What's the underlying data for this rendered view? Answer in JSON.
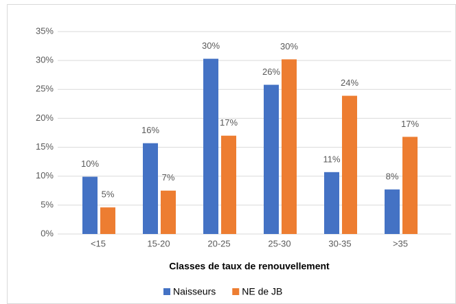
{
  "chart_data": {
    "type": "bar",
    "x_label": "Classes de taux de renouvellement",
    "categories": [
      "<15",
      "15-20",
      "20-25",
      "25-30",
      "30-35",
      ">35"
    ],
    "series": [
      {
        "name": "Naisseurs",
        "color": "#4472c4",
        "values": [
          9.9,
          15.7,
          30.3,
          25.8,
          10.7,
          7.7
        ],
        "value_labels": [
          "10%",
          "16%",
          "30%",
          "26%",
          "11%",
          "8%"
        ]
      },
      {
        "name": "NE de JB",
        "color": "#ed7d31",
        "values": [
          4.6,
          7.5,
          17.0,
          30.2,
          23.9,
          16.8
        ],
        "value_labels": [
          "5%",
          "7%",
          "17%",
          "30%",
          "24%",
          "17%"
        ]
      }
    ],
    "ylim": [
      0,
      35
    ],
    "yticks": [
      {
        "value": 0,
        "label": "0%"
      },
      {
        "value": 5,
        "label": "5%"
      },
      {
        "value": 10,
        "label": "10%"
      },
      {
        "value": 15,
        "label": "15%"
      },
      {
        "value": 20,
        "label": "20%"
      },
      {
        "value": 25,
        "label": "25%"
      },
      {
        "value": 30,
        "label": "30%"
      },
      {
        "value": 35,
        "label": "35%"
      }
    ],
    "grid": true,
    "legend": "bottom"
  }
}
